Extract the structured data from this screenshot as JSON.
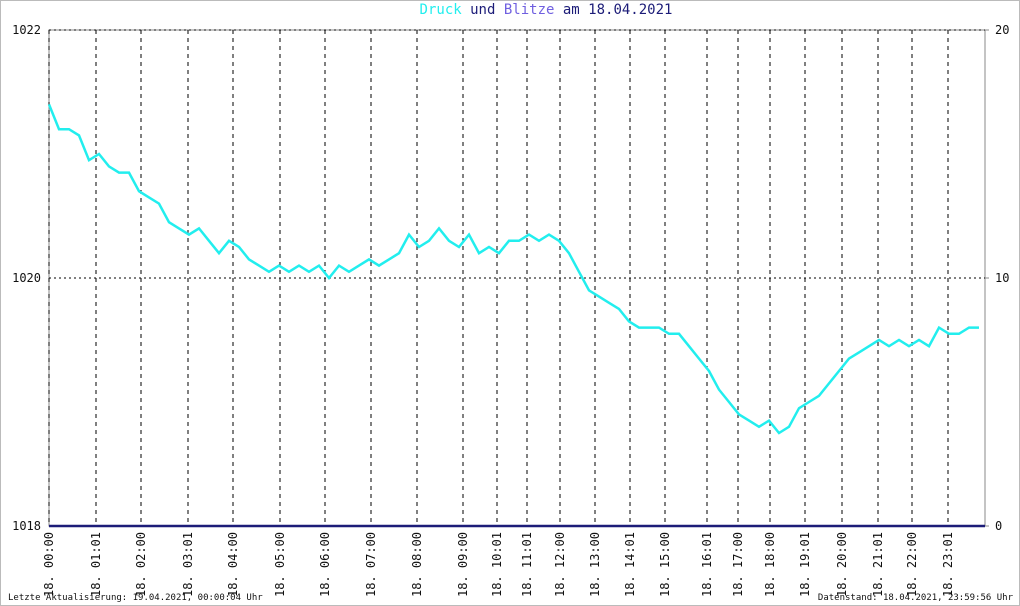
{
  "chart_data": {
    "type": "line",
    "title_joiner": "und",
    "title_suffix": "am 18.04.2021",
    "footer_left": "Letzte Aktualisierung: 19.04.2021, 00:00:04 Uhr",
    "footer_right": "Datenstand: 18.04.2021, 23:59:56 Uhr",
    "xlim": [
      0,
      936
    ],
    "xticks": [
      {
        "value": 0,
        "label": "18. 00:00"
      },
      {
        "value": 47,
        "label": "18. 01:01"
      },
      {
        "value": 92,
        "label": "18. 02:00"
      },
      {
        "value": 139,
        "label": "18. 03:01"
      },
      {
        "value": 184,
        "label": "18. 04:00"
      },
      {
        "value": 231,
        "label": "18. 05:00"
      },
      {
        "value": 276,
        "label": "18. 06:00"
      },
      {
        "value": 322,
        "label": "18. 07:00"
      },
      {
        "value": 368,
        "label": "18. 08:00"
      },
      {
        "value": 414,
        "label": "18. 09:00"
      },
      {
        "value": 448,
        "label": "18. 10:01"
      },
      {
        "value": 478,
        "label": "18. 11:01"
      },
      {
        "value": 511,
        "label": "18. 12:00"
      },
      {
        "value": 546,
        "label": "18. 13:00"
      },
      {
        "value": 581,
        "label": "18. 14:01"
      },
      {
        "value": 616,
        "label": "18. 15:00"
      },
      {
        "value": 658,
        "label": "18. 16:01"
      },
      {
        "value": 689,
        "label": "18. 17:00"
      },
      {
        "value": 721,
        "label": "18. 18:00"
      },
      {
        "value": 756,
        "label": "18. 19:01"
      },
      {
        "value": 793,
        "label": "18. 20:00"
      },
      {
        "value": 829,
        "label": "18. 21:01"
      },
      {
        "value": 863,
        "label": "18. 22:00"
      },
      {
        "value": 899,
        "label": "18. 23:01"
      }
    ],
    "ylim": [
      1018,
      1022
    ],
    "yticks": [
      1018,
      1020,
      1022
    ],
    "y2lim": [
      0,
      20
    ],
    "y2ticks": [
      0,
      10,
      20
    ],
    "grid": true,
    "series": [
      {
        "name": "Druck",
        "color": "#22eeee",
        "x": [
          0,
          10,
          20,
          30,
          40,
          50,
          60,
          70,
          80,
          90,
          100,
          110,
          120,
          130,
          140,
          150,
          160,
          170,
          180,
          190,
          200,
          210,
          220,
          230,
          240,
          250,
          260,
          270,
          280,
          290,
          300,
          310,
          320,
          330,
          340,
          350,
          360,
          370,
          380,
          390,
          400,
          410,
          420,
          430,
          440,
          450,
          460,
          470,
          480,
          490,
          500,
          510,
          520,
          530,
          540,
          550,
          560,
          570,
          580,
          590,
          600,
          610,
          620,
          630,
          640,
          650,
          660,
          670,
          680,
          690,
          700,
          710,
          720,
          730,
          740,
          750,
          760,
          770,
          780,
          790,
          800,
          810,
          820,
          830,
          840,
          850,
          860,
          870,
          880,
          890,
          900,
          910,
          920,
          930
        ],
        "values": [
          1021.4,
          1021.2,
          1021.2,
          1021.15,
          1020.95,
          1021.0,
          1020.9,
          1020.85,
          1020.85,
          1020.7,
          1020.65,
          1020.6,
          1020.45,
          1020.4,
          1020.35,
          1020.4,
          1020.3,
          1020.2,
          1020.3,
          1020.25,
          1020.15,
          1020.1,
          1020.05,
          1020.1,
          1020.05,
          1020.1,
          1020.05,
          1020.1,
          1020.0,
          1020.1,
          1020.05,
          1020.1,
          1020.15,
          1020.1,
          1020.15,
          1020.2,
          1020.35,
          1020.25,
          1020.3,
          1020.4,
          1020.3,
          1020.25,
          1020.35,
          1020.2,
          1020.25,
          1020.2,
          1020.3,
          1020.3,
          1020.35,
          1020.3,
          1020.35,
          1020.3,
          1020.2,
          1020.05,
          1019.9,
          1019.85,
          1019.8,
          1019.75,
          1019.65,
          1019.6,
          1019.6,
          1019.6,
          1019.55,
          1019.55,
          1019.45,
          1019.35,
          1019.25,
          1019.1,
          1019.0,
          1018.9,
          1018.85,
          1018.8,
          1018.85,
          1018.75,
          1018.8,
          1018.95,
          1019.0,
          1019.05,
          1019.15,
          1019.25,
          1019.35,
          1019.4,
          1019.45,
          1019.5,
          1019.45,
          1019.5,
          1019.45,
          1019.5,
          1019.45,
          1019.6,
          1019.55,
          1019.55,
          1019.6,
          1019.6
        ]
      },
      {
        "name": "Blitze",
        "color": "#7060e0",
        "line_color": "#1c1c78",
        "axis": "y2",
        "x": [
          0,
          936
        ],
        "values": [
          0,
          0
        ]
      }
    ]
  }
}
